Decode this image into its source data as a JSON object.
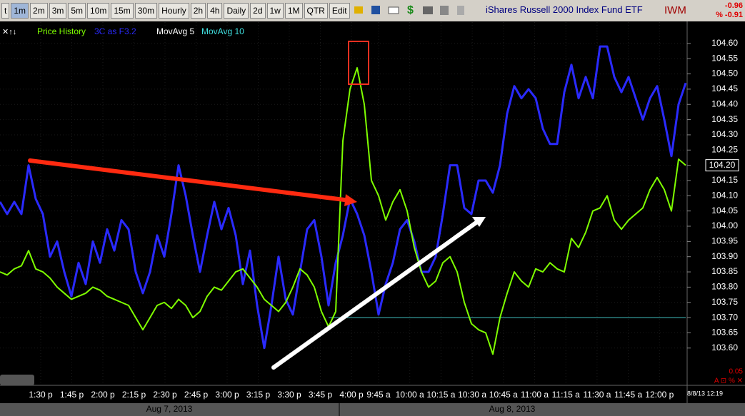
{
  "toolbar": {
    "buttons": [
      "t",
      "1m",
      "2m",
      "3m",
      "5m",
      "10m",
      "15m",
      "30m",
      "Hourly",
      "2h",
      "4h",
      "Daily",
      "2d",
      "1w",
      "1M",
      "QTR",
      "Edit"
    ],
    "title": "iShares Russell 2000 Index Fund ETF",
    "symbol": "IWM",
    "change": "-0.96",
    "change_pct": "% -0.91"
  },
  "chart_data": {
    "type": "line",
    "legend": [
      "Price History",
      "3C as F3.2",
      "MovAvg 5",
      "MovAvg 10"
    ],
    "sessions": [
      {
        "date": "Aug 7, 2013",
        "times": [
          "1:30 p",
          "1:45 p",
          "2:00 p",
          "2:15 p",
          "2:30 p",
          "2:45 p",
          "3:00 p",
          "3:15 p",
          "3:30 p",
          "3:45 p",
          "4:00 p"
        ]
      },
      {
        "date": "Aug 8, 2013",
        "times": [
          "9:45 a",
          "10:00 a",
          "10:15 a",
          "10:30 a",
          "10:45 a",
          "11:00 a",
          "11:15 a",
          "11:30 a",
          "11:45 a",
          "12:00 p"
        ]
      }
    ],
    "series": [
      {
        "name": "Price History",
        "color": "#7fff00",
        "values": [
          103.85,
          103.84,
          103.86,
          103.87,
          103.92,
          103.86,
          103.85,
          103.83,
          103.8,
          103.78,
          103.76,
          103.77,
          103.78,
          103.8,
          103.79,
          103.77,
          103.76,
          103.75,
          103.74,
          103.7,
          103.66,
          103.7,
          103.74,
          103.75,
          103.73,
          103.76,
          103.74,
          103.7,
          103.72,
          103.77,
          103.8,
          103.79,
          103.82,
          103.85,
          103.86,
          103.83,
          103.8,
          103.76,
          103.74,
          103.72,
          103.75,
          103.8,
          103.86,
          103.84,
          103.8,
          103.72,
          103.67,
          103.72,
          104.28,
          104.45,
          104.52,
          104.4,
          104.15,
          104.1,
          104.02,
          104.08,
          104.12,
          104.05,
          103.93,
          103.85,
          103.8,
          103.82,
          103.88,
          103.9,
          103.85,
          103.75,
          103.68,
          103.66,
          103.65,
          103.58,
          103.7,
          103.78,
          103.85,
          103.82,
          103.8,
          103.86,
          103.85,
          103.88,
          103.86,
          103.85,
          103.96,
          103.93,
          103.98,
          104.05,
          104.06,
          104.1,
          104.02,
          103.99,
          104.02,
          104.04,
          104.06,
          104.12,
          104.16,
          104.12,
          104.05,
          104.22,
          104.2
        ]
      },
      {
        "name": "3C as F3.2",
        "color": "#2a2aff",
        "values": [
          104.08,
          104.04,
          104.08,
          104.04,
          104.2,
          104.09,
          104.04,
          103.9,
          103.95,
          103.85,
          103.77,
          103.88,
          103.81,
          103.95,
          103.88,
          103.99,
          103.92,
          104.02,
          103.99,
          103.85,
          103.78,
          103.85,
          103.97,
          103.9,
          104.04,
          104.2,
          104.1,
          103.97,
          103.85,
          103.97,
          104.08,
          103.99,
          104.06,
          103.97,
          103.81,
          103.92,
          103.74,
          103.6,
          103.74,
          103.9,
          103.76,
          103.71,
          103.85,
          103.99,
          104.02,
          103.9,
          103.74,
          103.88,
          103.97,
          104.09,
          104.04,
          103.97,
          103.85,
          103.71,
          103.81,
          103.88,
          103.99,
          104.02,
          103.95,
          103.85,
          103.85,
          103.9,
          104.04,
          104.2,
          104.2,
          104.06,
          104.04,
          104.15,
          104.15,
          104.11,
          104.2,
          104.37,
          104.46,
          104.42,
          104.45,
          104.42,
          104.32,
          104.27,
          104.27,
          104.44,
          104.53,
          104.42,
          104.49,
          104.42,
          104.59,
          104.59,
          104.49,
          104.44,
          104.49,
          104.42,
          104.35,
          104.42,
          104.46,
          104.35,
          104.23,
          104.4,
          104.47
        ]
      }
    ],
    "ylim": [
      103.48,
      104.67
    ],
    "yticks": [
      {
        "value": 103.6,
        "label": "103.60"
      },
      {
        "value": 103.65,
        "label": "103.65"
      },
      {
        "value": 103.7,
        "label": "103.70"
      },
      {
        "value": 103.75,
        "label": "103.75"
      },
      {
        "value": 103.8,
        "label": "103.80"
      },
      {
        "value": 103.85,
        "label": "103.85"
      },
      {
        "value": 103.9,
        "label": "103.90"
      },
      {
        "value": 103.95,
        "label": "103.95"
      },
      {
        "value": 104.0,
        "label": "104.00"
      },
      {
        "value": 104.05,
        "label": "104.05"
      },
      {
        "value": 104.1,
        "label": "104.10"
      },
      {
        "value": 104.15,
        "label": "104.15"
      },
      {
        "value": 104.2,
        "label": "104.20"
      },
      {
        "value": 104.25,
        "label": "104.25"
      },
      {
        "value": 104.3,
        "label": "104.30"
      },
      {
        "value": 104.35,
        "label": "104.35"
      },
      {
        "value": 104.4,
        "label": "104.40"
      },
      {
        "value": 104.45,
        "label": "104.45"
      },
      {
        "value": 104.5,
        "label": "104.50"
      },
      {
        "value": 104.55,
        "label": "104.55"
      },
      {
        "value": 104.6,
        "label": "104.60"
      }
    ],
    "last_price": {
      "value": 104.2,
      "label": "104.20"
    },
    "reference_line": 103.7,
    "scale_note": "0.05",
    "timestamp": "8/8/13 12:19"
  }
}
